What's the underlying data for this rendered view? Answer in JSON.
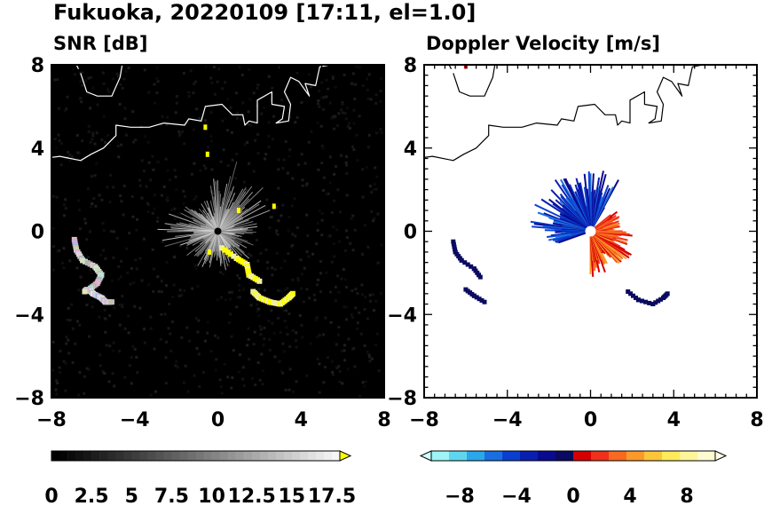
{
  "title": "Fukuoka, 20220109 [17:11, el=1.0]",
  "chart_data": [
    {
      "type": "heatmap",
      "title": "SNR [dB]",
      "xlim": [
        -8,
        8
      ],
      "ylim": [
        -8,
        8
      ],
      "xticks": [
        "−8",
        "−4",
        "0",
        "4",
        "8"
      ],
      "yticks": [
        "8",
        "4",
        "0",
        "−4",
        "−8"
      ],
      "background": "#000000",
      "colorbar": {
        "labels": [
          "0",
          "2.5",
          "5",
          "7.5",
          "10",
          "12.5",
          "15",
          "17.5"
        ],
        "min": 0,
        "max": 18,
        "extend": "max",
        "over_color": "#ffff00"
      }
    },
    {
      "type": "heatmap",
      "title": "Doppler Velocity [m/s]",
      "xlim": [
        -8,
        8
      ],
      "ylim": [
        -8,
        8
      ],
      "xticks": [
        "−8",
        "−4",
        "0",
        "4",
        "8"
      ],
      "yticks": [
        "8",
        "4",
        "0",
        "−4",
        "−8"
      ],
      "background": "#ffffff",
      "colorbar": {
        "labels": [
          "−8",
          "−4",
          "0",
          "4",
          "8"
        ],
        "min": -10,
        "max": 10,
        "extend": "both",
        "negative_colors": [
          "#9ff5f5",
          "#5fd6f0",
          "#2aa8ea",
          "#1a6fe0",
          "#0a3fcf",
          "#0a1fb0",
          "#0a0a90",
          "#0a0a60"
        ],
        "positive_colors": [
          "#d40000",
          "#f0301a",
          "#f86a20",
          "#fb9a2a",
          "#fdc63a",
          "#feea5a",
          "#fff49a",
          "#fffbd0"
        ]
      }
    }
  ]
}
